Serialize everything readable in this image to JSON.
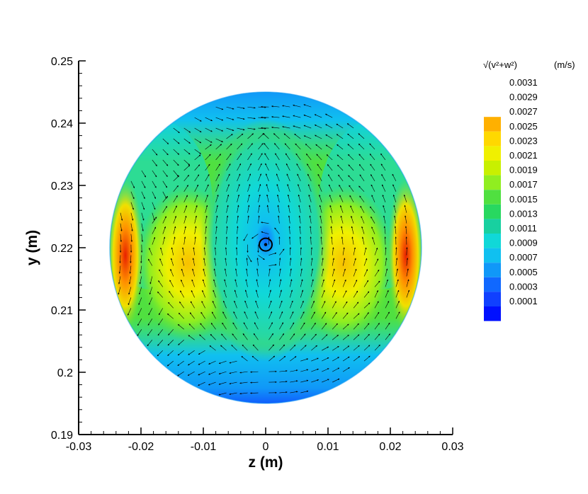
{
  "chart_data": {
    "type": "contour",
    "xlabel": "z  (m)",
    "ylabel": "y  (m)",
    "xlim": [
      -0.03,
      0.03
    ],
    "ylim": [
      0.19,
      0.25
    ],
    "x_ticks": [
      "-0.03",
      "-0.02",
      "-0.01",
      "0",
      "0.01",
      "0.02",
      "0.03"
    ],
    "y_ticks": [
      "0.19",
      "0.2",
      "0.21",
      "0.22",
      "0.23",
      "0.24",
      "0.25"
    ],
    "x_tick_values": [
      -0.03,
      -0.02,
      -0.01,
      0,
      0.01,
      0.02,
      0.03
    ],
    "y_tick_values": [
      0.19,
      0.2,
      0.21,
      0.22,
      0.23,
      0.24,
      0.25
    ],
    "domain": {
      "shape": "circle",
      "center_z": 0.0,
      "center_y": 0.22,
      "radius": 0.025
    },
    "vector_field": "secondary flow velocity vectors (v, w)",
    "legend": {
      "title_main": "√(v²+w²)",
      "title_unit": "(m/s)",
      "levels": [
        "0.0031",
        "0.0029",
        "0.0027",
        "0.0025",
        "0.0023",
        "0.0021",
        "0.0019",
        "0.0017",
        "0.0015",
        "0.0013",
        "0.0011",
        "0.0009",
        "0.0007",
        "0.0005",
        "0.0003",
        "0.0001"
      ],
      "colors": [
        "#ffffff",
        "#ffffff",
        "#ffb000",
        "#ffd800",
        "#f0f000",
        "#c8f000",
        "#90ee20",
        "#50e040",
        "#28d860",
        "#18d0a0",
        "#10d8d8",
        "#10c0f0",
        "#1098f8",
        "#1068ff",
        "#1040ff",
        "#0010ff"
      ]
    },
    "contour_features": {
      "max_value_region": "thin crescents near z ≈ ±0.022 at y ≈ 0.22, about 0.0027 m/s",
      "min_value_region": "along y = 0.195 bottom edge and near center point",
      "vortex_center": {
        "z": 0.0,
        "y": 0.2205
      }
    }
  }
}
